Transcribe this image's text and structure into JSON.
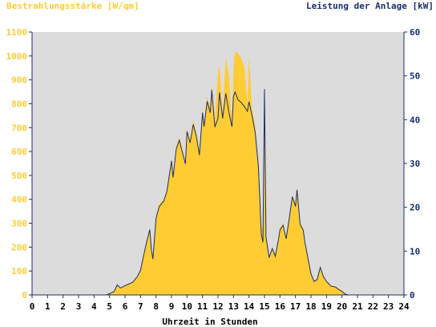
{
  "colors": {
    "background": "#ffffff",
    "plot_bg": "#dcdcdc",
    "irradiance": "#ffcc33",
    "power": "#1a2f6e",
    "axis": "#1a2f6e",
    "left_axis_text": "#ffcc33",
    "right_axis_text": "#1a2f6e",
    "x_text": "#000000"
  },
  "chart_data": {
    "type": "area",
    "left_title": "Bestrahlungsstärke [W/qm]",
    "right_title": "Leistung der Anlage [kW]",
    "xlabel": "Uhrzeit in Stunden",
    "xlim": [
      0,
      24
    ],
    "ylim_left": [
      0,
      1100
    ],
    "ylim_right": [
      0,
      60
    ],
    "x_ticks": [
      "0",
      "1",
      "2",
      "3",
      "4",
      "5",
      "6",
      "7",
      "8",
      "9",
      "10",
      "11",
      "12",
      "13",
      "14",
      "15",
      "16",
      "17",
      "18",
      "19",
      "20",
      "21",
      "22",
      "23",
      "24"
    ],
    "y_left_ticks": [
      "0",
      "100",
      "200",
      "300",
      "400",
      "500",
      "600",
      "700",
      "800",
      "900",
      "1000",
      "1100"
    ],
    "y_right_ticks": [
      "0",
      "10",
      "20",
      "30",
      "40",
      "50",
      "60"
    ],
    "grid": false,
    "series": [
      {
        "name": "Bestrahlungsstärke [W/qm]",
        "axis": "left",
        "style": "area",
        "x": [
          0,
          4.8,
          5.0,
          5.3,
          5.5,
          5.7,
          6.0,
          6.5,
          6.8,
          7.0,
          7.2,
          7.4,
          7.6,
          7.7,
          7.8,
          8.0,
          8.2,
          8.5,
          8.7,
          8.9,
          9.0,
          9.1,
          9.3,
          9.5,
          9.7,
          9.9,
          10.0,
          10.2,
          10.4,
          10.6,
          10.8,
          11.0,
          11.1,
          11.3,
          11.5,
          11.6,
          11.8,
          12.0,
          12.1,
          12.3,
          12.5,
          12.7,
          12.9,
          13.0,
          13.1,
          13.3,
          13.5,
          13.7,
          13.9,
          14.0,
          14.2,
          14.4,
          14.6,
          14.8,
          14.9,
          15.0,
          15.1,
          15.3,
          15.5,
          15.7,
          15.9,
          16.0,
          16.2,
          16.4,
          16.6,
          16.8,
          17.0,
          17.1,
          17.3,
          17.5,
          17.6,
          17.8,
          18.0,
          18.2,
          18.4,
          18.6,
          18.8,
          19.0,
          19.3,
          19.6,
          19.8,
          20.0,
          20.2,
          20.4,
          20.6,
          24
        ],
        "y": [
          0,
          0,
          8,
          15,
          45,
          30,
          40,
          55,
          80,
          110,
          170,
          230,
          280,
          200,
          160,
          330,
          380,
          400,
          440,
          530,
          570,
          500,
          620,
          660,
          610,
          560,
          700,
          650,
          730,
          680,
          600,
          780,
          720,
          830,
          780,
          880,
          720,
          930,
          960,
          760,
          990,
          920,
          720,
          950,
          1020,
          1010,
          990,
          950,
          800,
          1000,
          780,
          700,
          560,
          260,
          300,
          880,
          250,
          160,
          200,
          170,
          240,
          280,
          300,
          240,
          330,
          420,
          380,
          450,
          300,
          280,
          230,
          160,
          90,
          60,
          70,
          120,
          80,
          60,
          40,
          35,
          25,
          20,
          5,
          0,
          0,
          0
        ]
      },
      {
        "name": "Leistung der Anlage [kW]",
        "axis": "right",
        "style": "line",
        "x": [
          0,
          4.8,
          5.0,
          5.3,
          5.5,
          5.7,
          6.0,
          6.5,
          6.8,
          7.0,
          7.2,
          7.4,
          7.6,
          7.7,
          7.8,
          8.0,
          8.2,
          8.5,
          8.7,
          8.9,
          9.0,
          9.1,
          9.3,
          9.5,
          9.7,
          9.9,
          10.0,
          10.2,
          10.4,
          10.6,
          10.8,
          11.0,
          11.1,
          11.3,
          11.5,
          11.6,
          11.8,
          12.0,
          12.1,
          12.3,
          12.5,
          12.7,
          12.9,
          13.0,
          13.1,
          13.3,
          13.5,
          13.7,
          13.9,
          14.0,
          14.2,
          14.4,
          14.6,
          14.8,
          14.9,
          15.0,
          15.1,
          15.3,
          15.5,
          15.7,
          15.9,
          16.0,
          16.2,
          16.4,
          16.6,
          16.8,
          17.0,
          17.1,
          17.3,
          17.5,
          17.6,
          17.8,
          18.0,
          18.2,
          18.4,
          18.6,
          18.8,
          19.0,
          19.3,
          19.6,
          19.8,
          20.0,
          20.2,
          20.4,
          20.6,
          24
        ],
        "y": [
          0,
          0,
          0.3,
          0.8,
          2.3,
          1.6,
          2.1,
          2.9,
          4.2,
          5.6,
          9.0,
          12.2,
          14.9,
          10.3,
          8.2,
          17.5,
          20.1,
          21.4,
          23.6,
          28.3,
          30.6,
          26.8,
          33.2,
          35.3,
          32.6,
          29.9,
          37.3,
          34.7,
          38.9,
          36.3,
          31.9,
          41.6,
          38.4,
          44.2,
          41.6,
          46.8,
          38.3,
          40.3,
          46.2,
          40.3,
          46.0,
          41.8,
          38.4,
          45.3,
          46.3,
          44.5,
          43.9,
          43.0,
          41.9,
          44.1,
          40.9,
          37.1,
          29.6,
          13.8,
          12.0,
          47.0,
          13.2,
          8.5,
          10.6,
          8.8,
          12.6,
          14.8,
          15.9,
          12.8,
          17.5,
          22.4,
          20.2,
          24.0,
          16.1,
          14.8,
          12.2,
          8.5,
          4.8,
          3.1,
          3.5,
          6.3,
          4.2,
          3.1,
          2.0,
          1.8,
          1.2,
          0.8,
          0.2,
          0,
          0,
          0
        ]
      }
    ]
  }
}
